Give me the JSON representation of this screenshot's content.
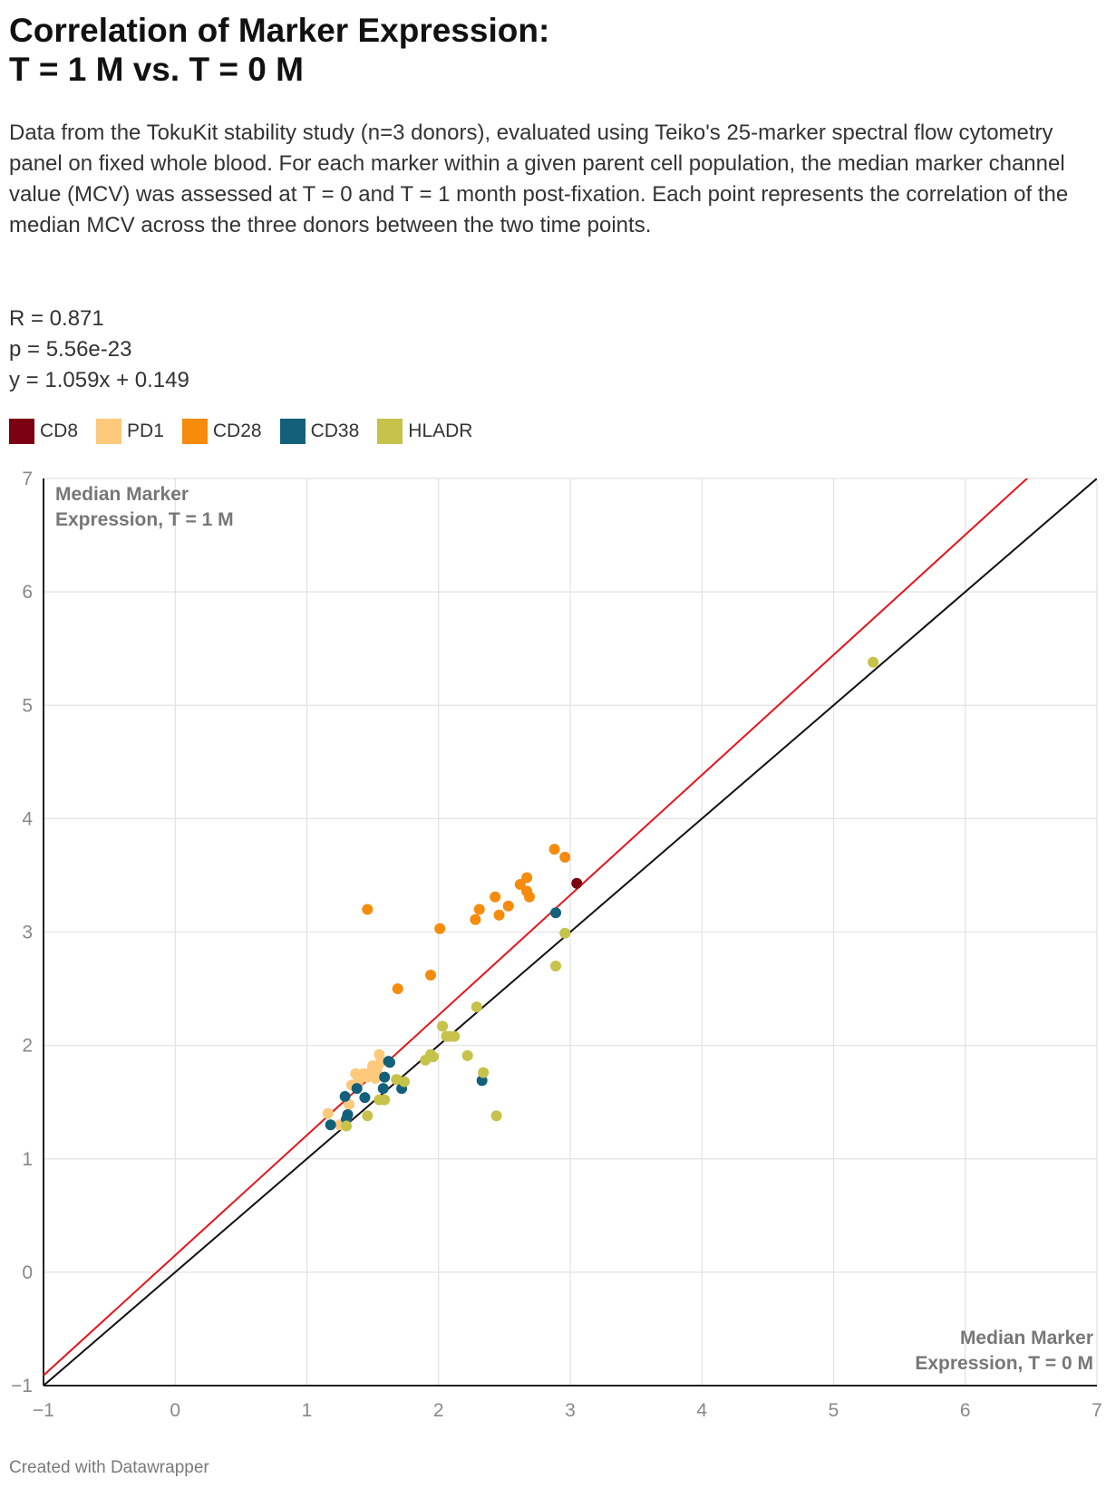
{
  "title_lines": [
    "Correlation of Marker Expression:",
    "T = 1 M vs. T = 0 M"
  ],
  "description": "Data from the TokuKit stability study (n=3 donors), evaluated using Teiko's 25-marker spectral flow cytometry panel on fixed whole blood. For each marker within a given parent cell population, the median marker channel value (MCV) was assessed at T = 0 and T = 1 month post-fixation. Each point represents the correlation of the median MCV across the three donors between the two time points.",
  "stats": {
    "r": "R = 0.871",
    "p": "p = 5.56e-23",
    "fit": "y = 1.059x + 0.149"
  },
  "footer": "Created with Datawrapper",
  "chart_data": {
    "type": "scatter",
    "xlabel": "Median Marker Expression, T = 0 M",
    "ylabel": "Median Marker Expression, T = 1 M",
    "xlim": [
      -1,
      7
    ],
    "ylim": [
      -1,
      7
    ],
    "xticks": [
      -1,
      0,
      1,
      2,
      3,
      4,
      5,
      6,
      7
    ],
    "yticks": [
      -1,
      0,
      1,
      2,
      3,
      4,
      5,
      6,
      7
    ],
    "grid": true,
    "lines": [
      {
        "name": "regression-line",
        "color": "#e8141b",
        "slope": 1.059,
        "intercept": 0.149
      },
      {
        "name": "identity-line",
        "color": "#111111",
        "slope": 1,
        "intercept": 0
      }
    ],
    "series": [
      {
        "name": "CD8",
        "color": "#7b0011",
        "points": [
          [
            3.05,
            3.43
          ]
        ]
      },
      {
        "name": "PD1",
        "color": "#fdc97a",
        "points": [
          [
            1.16,
            1.4
          ],
          [
            1.25,
            1.3
          ],
          [
            1.32,
            1.48
          ],
          [
            1.34,
            1.65
          ],
          [
            1.37,
            1.75
          ],
          [
            1.39,
            1.68
          ],
          [
            1.43,
            1.75
          ],
          [
            1.46,
            1.72
          ],
          [
            1.48,
            1.76
          ],
          [
            1.5,
            1.82
          ],
          [
            1.53,
            1.78
          ],
          [
            1.55,
            1.92
          ],
          [
            1.56,
            1.85
          ],
          [
            1.52,
            1.71
          ]
        ]
      },
      {
        "name": "CD28",
        "color": "#f68b0c",
        "points": [
          [
            1.46,
            3.2
          ],
          [
            1.69,
            2.5
          ],
          [
            1.94,
            2.62
          ],
          [
            2.01,
            3.03
          ],
          [
            2.28,
            3.11
          ],
          [
            2.31,
            3.2
          ],
          [
            2.43,
            3.31
          ],
          [
            2.46,
            3.15
          ],
          [
            2.53,
            3.23
          ],
          [
            2.62,
            3.42
          ],
          [
            2.67,
            3.36
          ],
          [
            2.67,
            3.48
          ],
          [
            2.69,
            3.31
          ],
          [
            2.88,
            3.73
          ],
          [
            2.96,
            3.66
          ]
        ]
      },
      {
        "name": "CD38",
        "color": "#12607a",
        "points": [
          [
            1.18,
            1.3
          ],
          [
            1.29,
            1.55
          ],
          [
            1.3,
            1.35
          ],
          [
            1.31,
            1.39
          ],
          [
            1.38,
            1.62
          ],
          [
            1.44,
            1.54
          ],
          [
            1.58,
            1.62
          ],
          [
            1.59,
            1.72
          ],
          [
            1.62,
            1.86
          ],
          [
            1.63,
            1.85
          ],
          [
            1.72,
            1.62
          ],
          [
            2.33,
            1.69
          ],
          [
            2.89,
            3.17
          ]
        ]
      },
      {
        "name": "HLADR",
        "color": "#c6c24a",
        "points": [
          [
            1.3,
            1.29
          ],
          [
            1.46,
            1.38
          ],
          [
            1.55,
            1.52
          ],
          [
            1.59,
            1.52
          ],
          [
            1.68,
            1.7
          ],
          [
            1.74,
            1.68
          ],
          [
            1.9,
            1.87
          ],
          [
            1.94,
            1.92
          ],
          [
            1.96,
            1.9
          ],
          [
            2.03,
            2.17
          ],
          [
            2.06,
            2.08
          ],
          [
            2.08,
            2.08
          ],
          [
            2.12,
            2.08
          ],
          [
            2.22,
            1.91
          ],
          [
            2.29,
            2.34
          ],
          [
            2.34,
            1.76
          ],
          [
            2.44,
            1.38
          ],
          [
            2.89,
            2.7
          ],
          [
            2.96,
            2.99
          ],
          [
            5.3,
            5.38
          ]
        ]
      }
    ]
  }
}
